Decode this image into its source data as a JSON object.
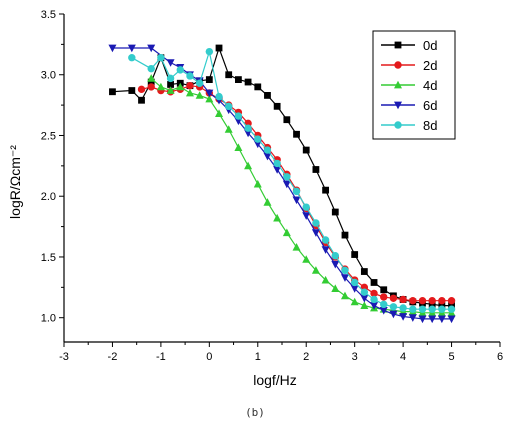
{
  "caption": "(b)",
  "chart_data": {
    "type": "scatter",
    "title": "",
    "xlabel": "logf/Hz",
    "ylabel": "logR/Ωcm⁻²",
    "xlim": [
      -3,
      6
    ],
    "ylim": [
      0.8,
      3.5
    ],
    "xticks": [
      -3,
      -2,
      -1,
      0,
      1,
      2,
      3,
      4,
      5,
      6
    ],
    "yticks": [
      1.0,
      1.5,
      2.0,
      2.5,
      3.0,
      3.5
    ],
    "xtick_labels": [
      "-3",
      "-2",
      "-1",
      "0",
      "1",
      "2",
      "3",
      "4",
      "5",
      "6"
    ],
    "ytick_labels": [
      "1.0",
      "1.5",
      "2.0",
      "2.5",
      "3.0",
      "3.5"
    ],
    "grid": false,
    "legend_position": "top-right",
    "series": [
      {
        "name": "0d",
        "color": "#000000",
        "marker": "square",
        "x": [
          -2.0,
          -1.6,
          -1.4,
          -1.2,
          -1.0,
          -0.8,
          -0.6,
          -0.4,
          -0.2,
          0.0,
          0.2,
          0.4,
          0.6,
          0.8,
          1.0,
          1.2,
          1.4,
          1.6,
          1.8,
          2.0,
          2.2,
          2.4,
          2.6,
          2.8,
          3.0,
          3.2,
          3.4,
          3.6,
          3.8,
          4.0,
          4.2,
          4.4,
          4.6,
          4.8,
          5.0
        ],
        "y": [
          2.86,
          2.87,
          2.79,
          2.94,
          3.14,
          2.92,
          2.93,
          2.91,
          2.95,
          2.96,
          3.22,
          3.0,
          2.96,
          2.94,
          2.9,
          2.83,
          2.74,
          2.63,
          2.51,
          2.38,
          2.22,
          2.05,
          1.87,
          1.68,
          1.52,
          1.38,
          1.29,
          1.23,
          1.18,
          1.15,
          1.13,
          1.12,
          1.11,
          1.1,
          1.1
        ]
      },
      {
        "name": "2d",
        "color": "#e41a1c",
        "marker": "circle",
        "x": [
          -1.4,
          -1.2,
          -1.0,
          -0.8,
          -0.6,
          -0.4,
          -0.2,
          0.0,
          0.2,
          0.4,
          0.6,
          0.8,
          1.0,
          1.2,
          1.4,
          1.6,
          1.8,
          2.0,
          2.2,
          2.4,
          2.6,
          2.8,
          3.0,
          3.2,
          3.4,
          3.6,
          3.8,
          4.0,
          4.2,
          4.4,
          4.6,
          4.8,
          5.0
        ],
        "y": [
          2.88,
          2.9,
          2.87,
          2.86,
          2.88,
          2.91,
          2.9,
          2.85,
          2.8,
          2.75,
          2.69,
          2.6,
          2.5,
          2.4,
          2.3,
          2.18,
          2.05,
          1.9,
          1.76,
          1.62,
          1.5,
          1.4,
          1.31,
          1.25,
          1.2,
          1.17,
          1.16,
          1.15,
          1.14,
          1.14,
          1.14,
          1.14,
          1.14
        ]
      },
      {
        "name": "4d",
        "color": "#33cc33",
        "marker": "triangle-up",
        "x": [
          -1.2,
          -1.0,
          -0.8,
          -0.6,
          -0.4,
          -0.2,
          0.0,
          0.2,
          0.4,
          0.6,
          0.8,
          1.0,
          1.2,
          1.4,
          1.6,
          1.8,
          2.0,
          2.2,
          2.4,
          2.6,
          2.8,
          3.0,
          3.2,
          3.4,
          3.6,
          3.8,
          4.0,
          4.2,
          4.4,
          4.6,
          4.8,
          5.0
        ],
        "y": [
          2.97,
          2.9,
          2.87,
          2.9,
          2.85,
          2.83,
          2.8,
          2.68,
          2.55,
          2.4,
          2.25,
          2.1,
          1.95,
          1.82,
          1.7,
          1.58,
          1.48,
          1.39,
          1.31,
          1.24,
          1.18,
          1.13,
          1.1,
          1.08,
          1.07,
          1.06,
          1.05,
          1.05,
          1.04,
          1.04,
          1.04,
          1.04
        ]
      },
      {
        "name": "6d",
        "color": "#1a1ab3",
        "marker": "triangle-down",
        "x": [
          -2.0,
          -1.6,
          -1.2,
          -0.8,
          -0.6,
          -0.4,
          -0.2,
          0.0,
          0.2,
          0.4,
          0.6,
          0.8,
          1.0,
          1.2,
          1.4,
          1.6,
          1.8,
          2.0,
          2.2,
          2.4,
          2.6,
          2.8,
          3.0,
          3.2,
          3.4,
          3.6,
          3.8,
          4.0,
          4.2,
          4.4,
          4.6,
          4.8,
          5.0
        ],
        "y": [
          3.22,
          3.22,
          3.22,
          3.1,
          3.06,
          3.0,
          2.95,
          2.85,
          2.79,
          2.71,
          2.62,
          2.52,
          2.43,
          2.33,
          2.22,
          2.1,
          1.97,
          1.84,
          1.7,
          1.56,
          1.44,
          1.33,
          1.24,
          1.16,
          1.1,
          1.06,
          1.03,
          1.01,
          1.0,
          0.99,
          0.99,
          0.99,
          0.99
        ]
      },
      {
        "name": "8d",
        "color": "#33cccc",
        "marker": "circle",
        "x": [
          -1.6,
          -1.2,
          -1.0,
          -0.8,
          -0.6,
          -0.4,
          -0.2,
          0.0,
          0.2,
          0.4,
          0.6,
          0.8,
          1.0,
          1.2,
          1.4,
          1.6,
          1.8,
          2.0,
          2.2,
          2.4,
          2.6,
          2.8,
          3.0,
          3.2,
          3.4,
          3.6,
          3.8,
          4.0,
          4.2,
          4.4,
          4.6,
          4.8,
          5.0
        ],
        "y": [
          3.14,
          3.05,
          3.14,
          2.97,
          3.04,
          2.99,
          2.93,
          3.19,
          2.82,
          2.74,
          2.66,
          2.56,
          2.47,
          2.38,
          2.27,
          2.16,
          2.04,
          1.91,
          1.78,
          1.64,
          1.51,
          1.39,
          1.29,
          1.21,
          1.15,
          1.11,
          1.09,
          1.08,
          1.07,
          1.07,
          1.07,
          1.07,
          1.07
        ]
      }
    ]
  }
}
